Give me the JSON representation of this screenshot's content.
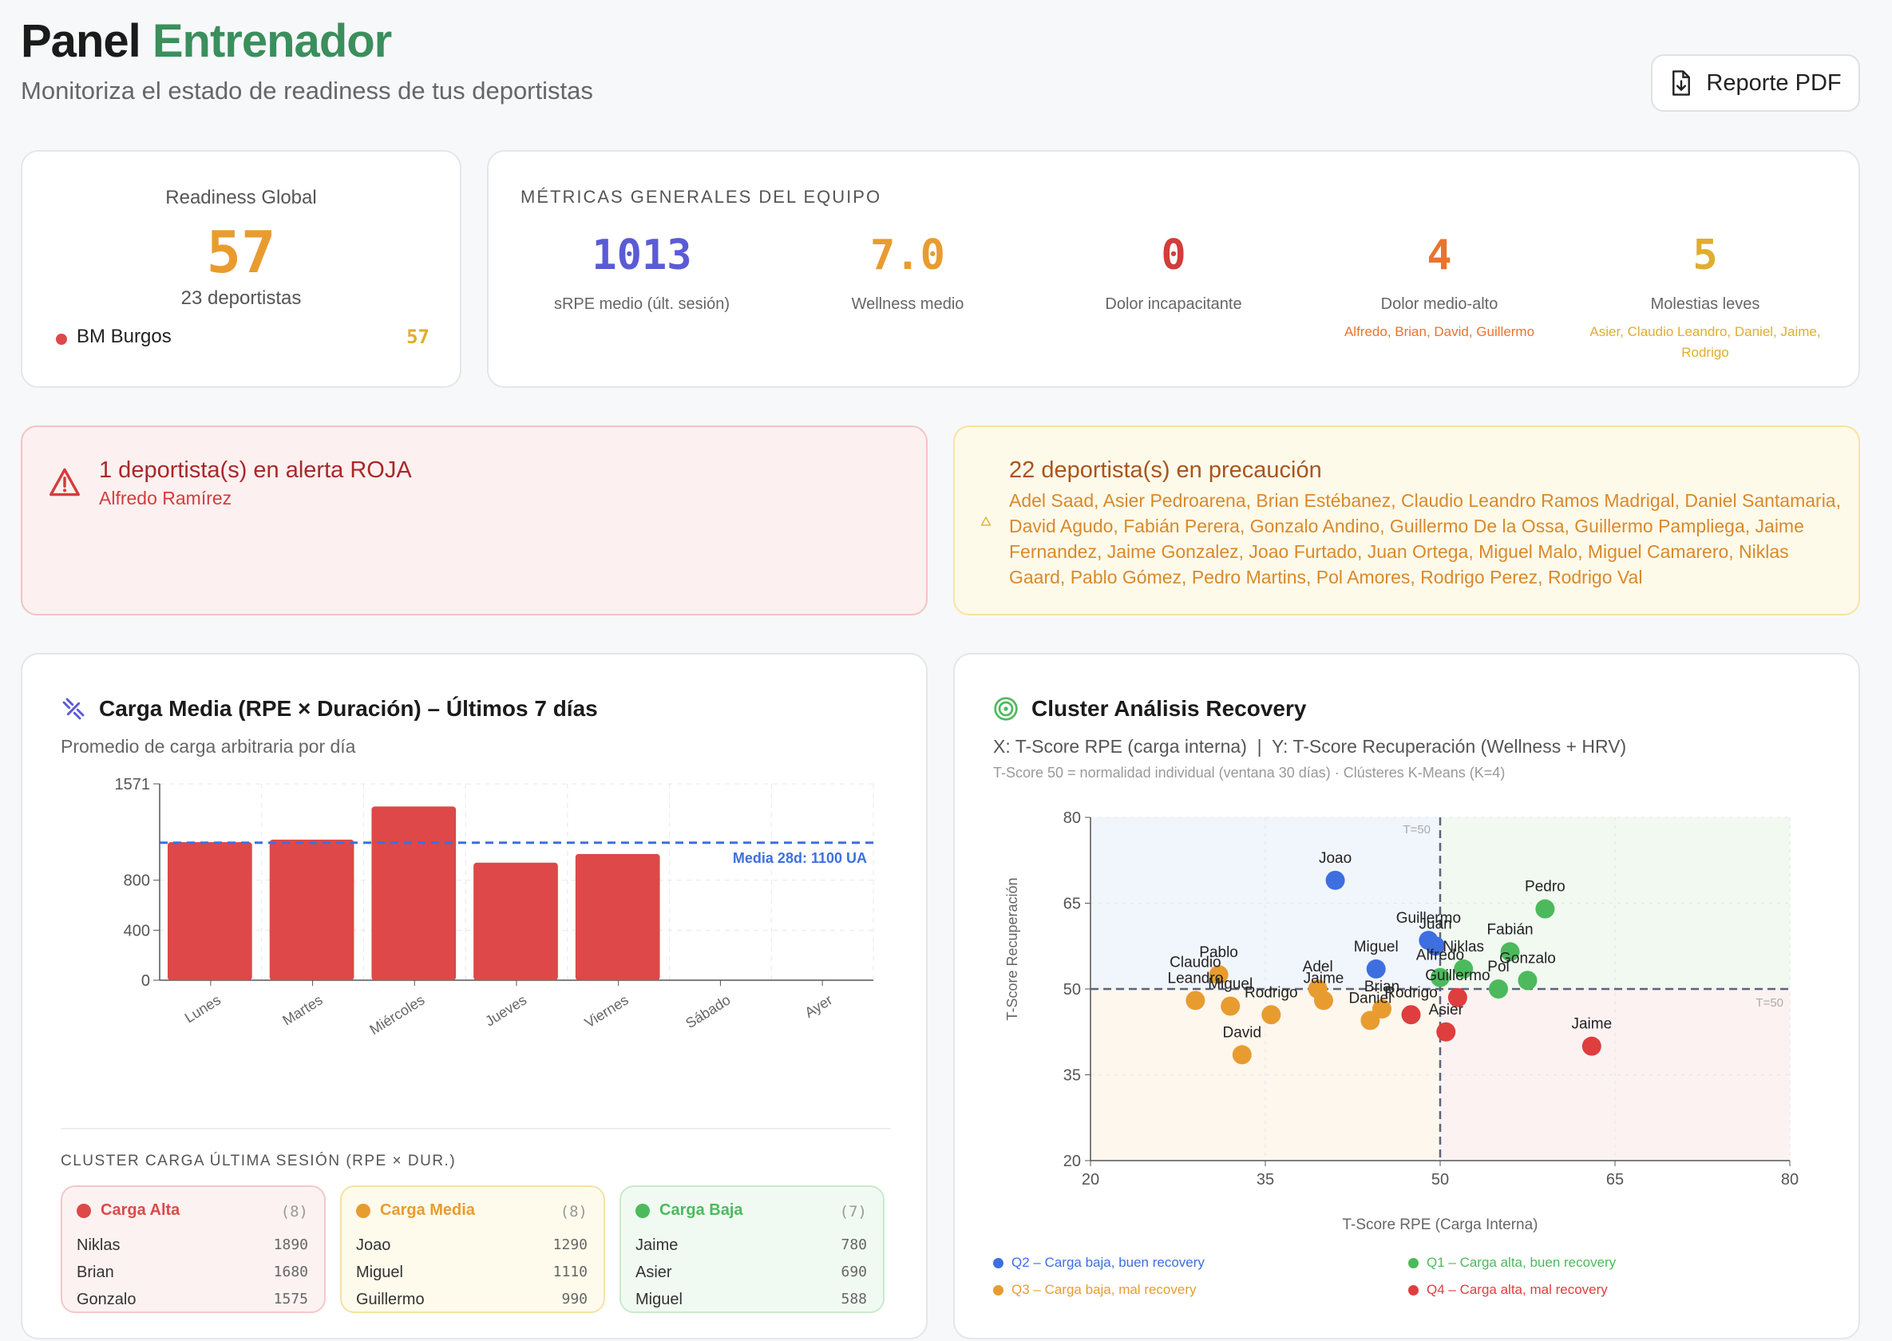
{
  "header": {
    "title_a": "Panel",
    "title_b": "Entrenador",
    "subtitle": "Monitoriza el estado de readiness de tus deportistas",
    "pdf_button": "Reporte PDF"
  },
  "readiness": {
    "label": "Readiness Global",
    "value": "57",
    "count": "23 deportistas",
    "team_name": "BM Burgos",
    "team_value": "57"
  },
  "metrics": {
    "heading": "MÉTRICAS GENERALES DEL EQUIPO",
    "items": [
      {
        "value": "1013",
        "label": "sRPE medio (últ. sesión)",
        "names": "",
        "color": "#5b5bd6"
      },
      {
        "value": "7.0",
        "label": "Wellness medio",
        "names": "",
        "color": "#e89c30"
      },
      {
        "value": "0",
        "label": "Dolor incapacitante",
        "names": "",
        "color": "#d43c3c"
      },
      {
        "value": "4",
        "label": "Dolor medio-alto",
        "names": "Alfredo, Brian, David, Guillermo",
        "color": "#e8742e"
      },
      {
        "value": "5",
        "label": "Molestias leves",
        "names": "Asier, Claudio Leandro, Daniel, Jaime, Rodrigo",
        "color": "#e0ad2e"
      }
    ]
  },
  "alerts": {
    "red": {
      "title": "1 deportista(s) en alerta ROJA",
      "names": "Alfredo Ramírez"
    },
    "yellow": {
      "title": "22 deportista(s) en precaución",
      "names": "Adel Saad, Asier Pedroarena, Brian Estébanez, Claudio Leandro Ramos Madrigal, Daniel Santamaria, David Agudo, Fabián Perera, Gonzalo Andino, Guillermo De la Ossa, Guillermo Pampliega, Jaime Fernandez, Jaime Gonzalez, Joao Furtado, Juan Ortega, Miguel Malo, Miguel Camarero, Niklas Gaard, Pablo Gómez, Pedro Martins, Pol Amores, Rodrigo Perez, Rodrigo Val"
    }
  },
  "load_panel": {
    "title": "Carga Media (RPE × Duración) – Últimos 7 días",
    "subtitle": "Promedio de carga arbitraria por día",
    "mean_label": "Media 28d: 1100 UA"
  },
  "cluster_load": {
    "heading": "CLUSTER CARGA ÚLTIMA SESIÓN (RPE × DUR.)",
    "groups": [
      {
        "name": "Carga Alta",
        "count": "(8)",
        "color": "#de4848",
        "rows": [
          {
            "n": "Niklas",
            "v": "1890"
          },
          {
            "n": "Brian",
            "v": "1680"
          },
          {
            "n": "Gonzalo",
            "v": "1575"
          }
        ]
      },
      {
        "name": "Carga Media",
        "count": "(8)",
        "color": "#e89c30",
        "rows": [
          {
            "n": "Joao",
            "v": "1290"
          },
          {
            "n": "Miguel",
            "v": "1110"
          },
          {
            "n": "Guillermo",
            "v": "990"
          }
        ]
      },
      {
        "name": "Carga Baja",
        "count": "(7)",
        "color": "#4cba5c",
        "rows": [
          {
            "n": "Jaime",
            "v": "780"
          },
          {
            "n": "Asier",
            "v": "690"
          },
          {
            "n": "Miguel",
            "v": "588"
          }
        ]
      }
    ]
  },
  "recovery_panel": {
    "title": "Cluster Análisis Recovery",
    "subtitle": "X: T-Score RPE (carga interna)  |  Y: T-Score Recuperación (Wellness + HRV)",
    "note": "T-Score 50 = normalidad individual (ventana 30 días) · Clústeres K-Means (K=4)",
    "legend": [
      {
        "label": "Q2 – Carga baja, buen recovery",
        "color": "#3d6fe0"
      },
      {
        "label": "Q1 – Carga alta, buen recovery",
        "color": "#4cba5c"
      },
      {
        "label": "Q3 – Carga baja, mal recovery",
        "color": "#e89c30"
      },
      {
        "label": "Q4 – Carga alta, mal recovery",
        "color": "#de3e3e"
      }
    ]
  },
  "icons": {
    "pdf": "file-download-icon",
    "alert": "warning-triangle-icon",
    "small_alert": "warning-small-icon",
    "load": "activity-icon",
    "recovery": "target-icon"
  },
  "chart_data": [
    {
      "type": "bar",
      "categories": [
        "Lunes",
        "Martes",
        "Miércoles",
        "Jueves",
        "Viernes",
        "Sábado",
        "Ayer"
      ],
      "values": [
        1105,
        1125,
        1390,
        940,
        1010,
        0,
        0
      ],
      "ylim": [
        0,
        1571
      ],
      "yticks": [
        "0",
        "400",
        "800",
        "1571"
      ],
      "mean": 1100,
      "xlabel": "",
      "ylabel": ""
    },
    {
      "type": "scatter",
      "xlabel": "T-Score RPE (Carga Interna)",
      "ylabel": "T-Score Recuperación",
      "xlim": [
        20,
        80
      ],
      "ylim": [
        20,
        80
      ],
      "xticks": [
        "20",
        "35",
        "50",
        "65",
        "80"
      ],
      "yticks": [
        "20",
        "35",
        "50",
        "65",
        "80"
      ],
      "threshold_label": "T=50",
      "points": [
        {
          "name": "Joao",
          "x": 41,
          "y": 69,
          "c": "#3d6fe0"
        },
        {
          "name": "Guillermo",
          "x": 49,
          "y": 58.5,
          "c": "#3d6fe0"
        },
        {
          "name": "Juan",
          "x": 49.6,
          "y": 57.5,
          "c": "#3d6fe0"
        },
        {
          "name": "Miguel",
          "x": 44.5,
          "y": 53.5,
          "c": "#3d6fe0"
        },
        {
          "name": "Pedro",
          "x": 59,
          "y": 64,
          "c": "#4cba5c"
        },
        {
          "name": "Fabián",
          "x": 56,
          "y": 56.5,
          "c": "#4cba5c"
        },
        {
          "name": "Niklas",
          "x": 52,
          "y": 53.5,
          "c": "#4cba5c"
        },
        {
          "name": "Alfredo",
          "x": 50,
          "y": 52,
          "c": "#4cba5c"
        },
        {
          "name": "Gonzalo",
          "x": 57.5,
          "y": 51.5,
          "c": "#4cba5c"
        },
        {
          "name": "Pol",
          "x": 55,
          "y": 50,
          "c": "#4cba5c"
        },
        {
          "name": "Guillermo",
          "x": 51.5,
          "y": 48.5,
          "c": "#de3e3e"
        },
        {
          "name": "Jaime",
          "x": 63,
          "y": 40,
          "c": "#de3e3e"
        },
        {
          "name": "Asier",
          "x": 50.5,
          "y": 42.5,
          "c": "#de3e3e"
        },
        {
          "name": "Rodrigo",
          "x": 47.5,
          "y": 45.5,
          "c": "#de3e3e"
        },
        {
          "name": "Pablo",
          "x": 31,
          "y": 52.5,
          "c": "#e89c30"
        },
        {
          "name": "Claudio Leandro",
          "x": 29,
          "y": 48,
          "c": "#e89c30"
        },
        {
          "name": "Miguel",
          "x": 32,
          "y": 47,
          "c": "#e89c30"
        },
        {
          "name": "Rodrigo",
          "x": 35.5,
          "y": 45.5,
          "c": "#e89c30"
        },
        {
          "name": "David",
          "x": 33,
          "y": 38.5,
          "c": "#e89c30"
        },
        {
          "name": "Adel",
          "x": 39.5,
          "y": 50,
          "c": "#e89c30"
        },
        {
          "name": "Jaime",
          "x": 40,
          "y": 48,
          "c": "#e89c30"
        },
        {
          "name": "Brian",
          "x": 45,
          "y": 46.5,
          "c": "#e89c30"
        },
        {
          "name": "Daniel",
          "x": 44,
          "y": 44.5,
          "c": "#e89c30"
        }
      ]
    }
  ]
}
